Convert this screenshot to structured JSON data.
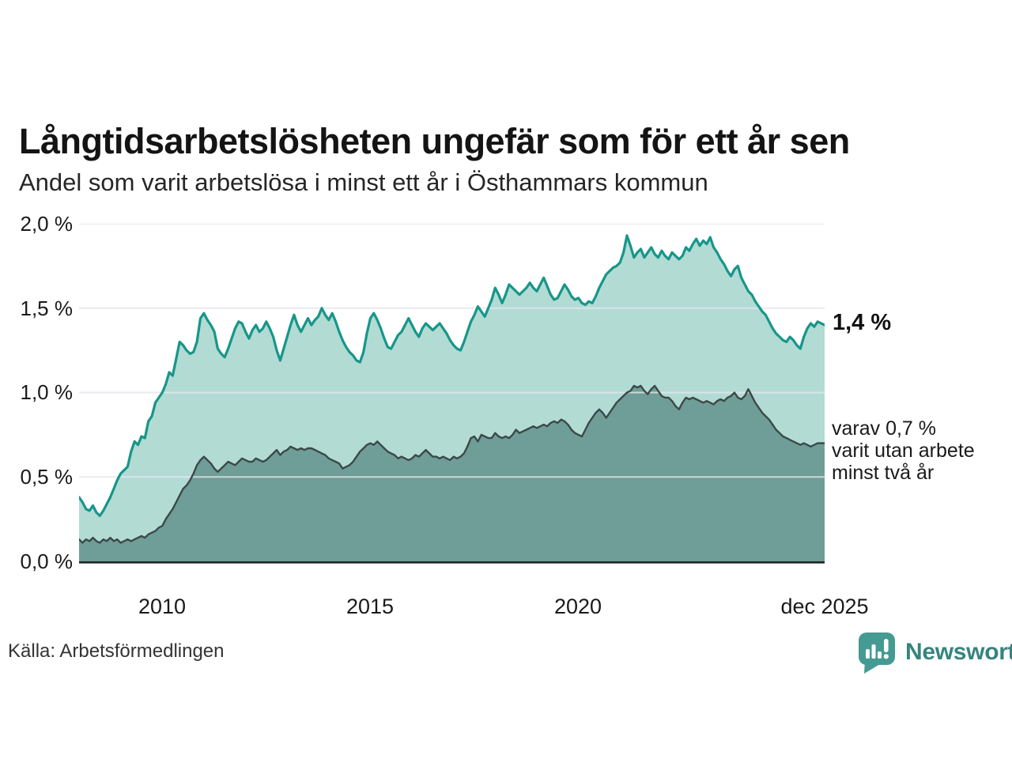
{
  "title": "Långtidsarbetslösheten ungefär som för ett år sen",
  "subtitle": "Andel som varit arbetslösa i minst ett år i Östhammars kommun",
  "source": "Källa: Arbetsförmedlingen",
  "branding": {
    "name": "Newsworthy",
    "icon": "newsworthy-speech-bubble-barchart-icon",
    "icon_color": "#459a93",
    "text_color": "#35847f"
  },
  "annotations": {
    "latest_total": "1,4 %",
    "secondary": "varav 0,7 %\nvarit utan arbete\nminst två år"
  },
  "colors": {
    "line_total": "#17968a",
    "fill_total": "#b2dbd4",
    "line_two_years": "#3b4a47",
    "fill_two_years": "#6f9d98",
    "gridline": "#e3e6ec",
    "axis": "#1a2623"
  },
  "chart_data": {
    "type": "area",
    "title": "Andel som varit arbetslösa i minst ett år i Östhammars kommun",
    "unit": "%",
    "x": {
      "start_year": 2008,
      "interval": "monthly",
      "end_label": "dec 2025"
    },
    "ylim": [
      0,
      2.0
    ],
    "grid": true,
    "gridline_values": [
      0.5,
      1.0,
      1.5,
      2.0
    ],
    "y_ticks": [
      {
        "value": 2.0,
        "label": "2,0 %"
      },
      {
        "value": 1.5,
        "label": "1,5 %"
      },
      {
        "value": 1.0,
        "label": "1,0 %"
      },
      {
        "value": 0.5,
        "label": "0,5 %"
      },
      {
        "value": 0.0,
        "label": "0,0 %"
      }
    ],
    "x_ticks": [
      {
        "year": 2010.0,
        "label": "2010"
      },
      {
        "year": 2015.0,
        "label": "2015"
      },
      {
        "year": 2020.0,
        "label": "2020"
      },
      {
        "year": 2025.9167,
        "label": "dec 2025"
      }
    ],
    "series": [
      {
        "name": "Andel arbetslösa i minst ett år",
        "end_value": 1.4,
        "end_label": "1,4 %",
        "line_color": "#17968a",
        "fill_color": "#b2dbd4",
        "values": [
          0.38,
          0.35,
          0.31,
          0.3,
          0.33,
          0.29,
          0.27,
          0.3,
          0.34,
          0.38,
          0.43,
          0.48,
          0.52,
          0.54,
          0.56,
          0.65,
          0.71,
          0.69,
          0.74,
          0.73,
          0.83,
          0.86,
          0.94,
          0.97,
          1.0,
          1.05,
          1.12,
          1.1,
          1.2,
          1.3,
          1.28,
          1.25,
          1.23,
          1.24,
          1.3,
          1.44,
          1.47,
          1.43,
          1.4,
          1.36,
          1.26,
          1.23,
          1.21,
          1.26,
          1.32,
          1.38,
          1.42,
          1.41,
          1.36,
          1.32,
          1.37,
          1.4,
          1.36,
          1.38,
          1.42,
          1.38,
          1.33,
          1.25,
          1.19,
          1.26,
          1.33,
          1.4,
          1.46,
          1.4,
          1.36,
          1.4,
          1.44,
          1.4,
          1.43,
          1.45,
          1.5,
          1.46,
          1.43,
          1.47,
          1.42,
          1.36,
          1.31,
          1.27,
          1.24,
          1.22,
          1.19,
          1.18,
          1.24,
          1.35,
          1.44,
          1.47,
          1.43,
          1.38,
          1.32,
          1.27,
          1.26,
          1.3,
          1.34,
          1.36,
          1.4,
          1.44,
          1.4,
          1.36,
          1.33,
          1.38,
          1.41,
          1.39,
          1.37,
          1.39,
          1.41,
          1.38,
          1.35,
          1.31,
          1.28,
          1.26,
          1.25,
          1.3,
          1.36,
          1.42,
          1.46,
          1.51,
          1.48,
          1.45,
          1.5,
          1.55,
          1.62,
          1.58,
          1.53,
          1.58,
          1.64,
          1.62,
          1.6,
          1.58,
          1.6,
          1.62,
          1.65,
          1.62,
          1.6,
          1.64,
          1.68,
          1.63,
          1.58,
          1.55,
          1.56,
          1.6,
          1.64,
          1.61,
          1.57,
          1.55,
          1.56,
          1.53,
          1.52,
          1.54,
          1.53,
          1.57,
          1.62,
          1.66,
          1.7,
          1.72,
          1.74,
          1.75,
          1.77,
          1.83,
          1.93,
          1.87,
          1.8,
          1.83,
          1.85,
          1.8,
          1.83,
          1.86,
          1.82,
          1.8,
          1.84,
          1.81,
          1.79,
          1.83,
          1.81,
          1.79,
          1.81,
          1.86,
          1.84,
          1.88,
          1.91,
          1.87,
          1.9,
          1.88,
          1.92,
          1.86,
          1.83,
          1.79,
          1.76,
          1.72,
          1.69,
          1.73,
          1.75,
          1.68,
          1.64,
          1.6,
          1.58,
          1.54,
          1.51,
          1.48,
          1.46,
          1.42,
          1.38,
          1.35,
          1.33,
          1.31,
          1.3,
          1.33,
          1.31,
          1.28,
          1.26,
          1.33,
          1.38,
          1.41,
          1.39,
          1.42,
          1.41,
          1.4
        ]
      },
      {
        "name": "varav varit utan arbete minst två år",
        "end_value": 0.7,
        "end_label": "varav 0,7 % varit utan arbete minst två år",
        "line_color": "#3b4a47",
        "fill_color": "#6f9d98",
        "values": [
          0.13,
          0.11,
          0.13,
          0.12,
          0.14,
          0.12,
          0.11,
          0.13,
          0.12,
          0.14,
          0.12,
          0.13,
          0.11,
          0.12,
          0.13,
          0.12,
          0.13,
          0.14,
          0.15,
          0.14,
          0.16,
          0.17,
          0.18,
          0.2,
          0.21,
          0.25,
          0.28,
          0.31,
          0.35,
          0.39,
          0.43,
          0.45,
          0.48,
          0.52,
          0.57,
          0.6,
          0.62,
          0.6,
          0.58,
          0.55,
          0.53,
          0.55,
          0.57,
          0.59,
          0.58,
          0.57,
          0.59,
          0.61,
          0.6,
          0.59,
          0.59,
          0.61,
          0.6,
          0.59,
          0.6,
          0.62,
          0.64,
          0.66,
          0.63,
          0.65,
          0.66,
          0.68,
          0.67,
          0.66,
          0.67,
          0.66,
          0.67,
          0.67,
          0.66,
          0.65,
          0.64,
          0.63,
          0.61,
          0.6,
          0.59,
          0.58,
          0.55,
          0.56,
          0.57,
          0.59,
          0.62,
          0.65,
          0.67,
          0.69,
          0.7,
          0.69,
          0.71,
          0.69,
          0.67,
          0.65,
          0.64,
          0.63,
          0.61,
          0.62,
          0.61,
          0.6,
          0.61,
          0.63,
          0.62,
          0.64,
          0.66,
          0.64,
          0.62,
          0.62,
          0.61,
          0.62,
          0.61,
          0.6,
          0.62,
          0.61,
          0.62,
          0.64,
          0.68,
          0.73,
          0.74,
          0.71,
          0.75,
          0.74,
          0.73,
          0.73,
          0.76,
          0.74,
          0.73,
          0.74,
          0.73,
          0.75,
          0.78,
          0.76,
          0.77,
          0.78,
          0.79,
          0.8,
          0.79,
          0.8,
          0.81,
          0.8,
          0.82,
          0.83,
          0.82,
          0.84,
          0.83,
          0.81,
          0.78,
          0.76,
          0.75,
          0.74,
          0.78,
          0.82,
          0.85,
          0.88,
          0.9,
          0.88,
          0.85,
          0.88,
          0.91,
          0.94,
          0.96,
          0.98,
          1.0,
          1.01,
          1.04,
          1.03,
          1.04,
          1.01,
          0.99,
          1.02,
          1.04,
          1.01,
          0.98,
          0.97,
          0.97,
          0.95,
          0.92,
          0.9,
          0.94,
          0.97,
          0.96,
          0.97,
          0.96,
          0.95,
          0.94,
          0.95,
          0.94,
          0.93,
          0.95,
          0.96,
          0.95,
          0.97,
          0.98,
          1.0,
          0.97,
          0.96,
          0.98,
          1.02,
          0.98,
          0.94,
          0.91,
          0.88,
          0.86,
          0.84,
          0.81,
          0.78,
          0.76,
          0.74,
          0.73,
          0.72,
          0.71,
          0.7,
          0.69,
          0.7,
          0.69,
          0.68,
          0.69,
          0.7,
          0.7,
          0.7
        ]
      }
    ]
  }
}
